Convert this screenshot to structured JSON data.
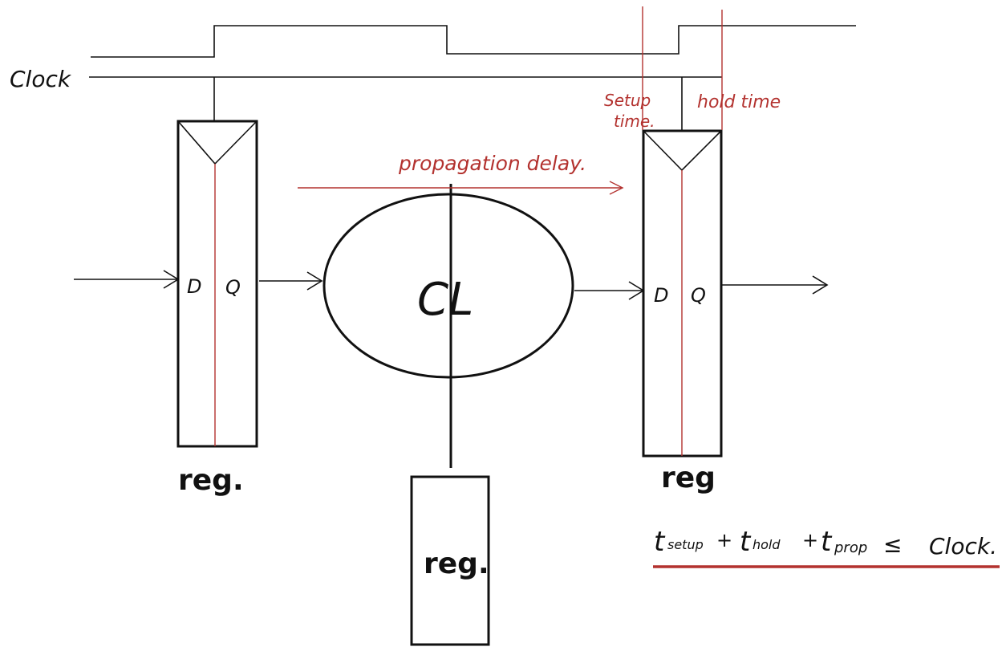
{
  "clock": {
    "label": "Clock"
  },
  "registers": {
    "left": {
      "label": "reg.",
      "d": "D",
      "q": "Q"
    },
    "right": {
      "label": "reg",
      "d": "D",
      "q": "Q"
    },
    "bottom": {
      "label": "reg."
    }
  },
  "logic": {
    "label": "CL"
  },
  "annotations": {
    "propagation_delay": "propagation delay.",
    "setup_time_line1": "Setup",
    "setup_time_line2": "time.",
    "hold_time": "hold time"
  },
  "equation": {
    "t_setup_main": "t",
    "t_setup_sub": "setup",
    "plus1": "+",
    "t_hold_main": "t",
    "t_hold_sub": "hold",
    "plus2": "+",
    "t_prop_main": "t",
    "t_prop_sub": "prop",
    "leq": "≤",
    "rhs": "Clock."
  },
  "colors": {
    "ink": "#111111",
    "annotation": "#b3322f"
  }
}
